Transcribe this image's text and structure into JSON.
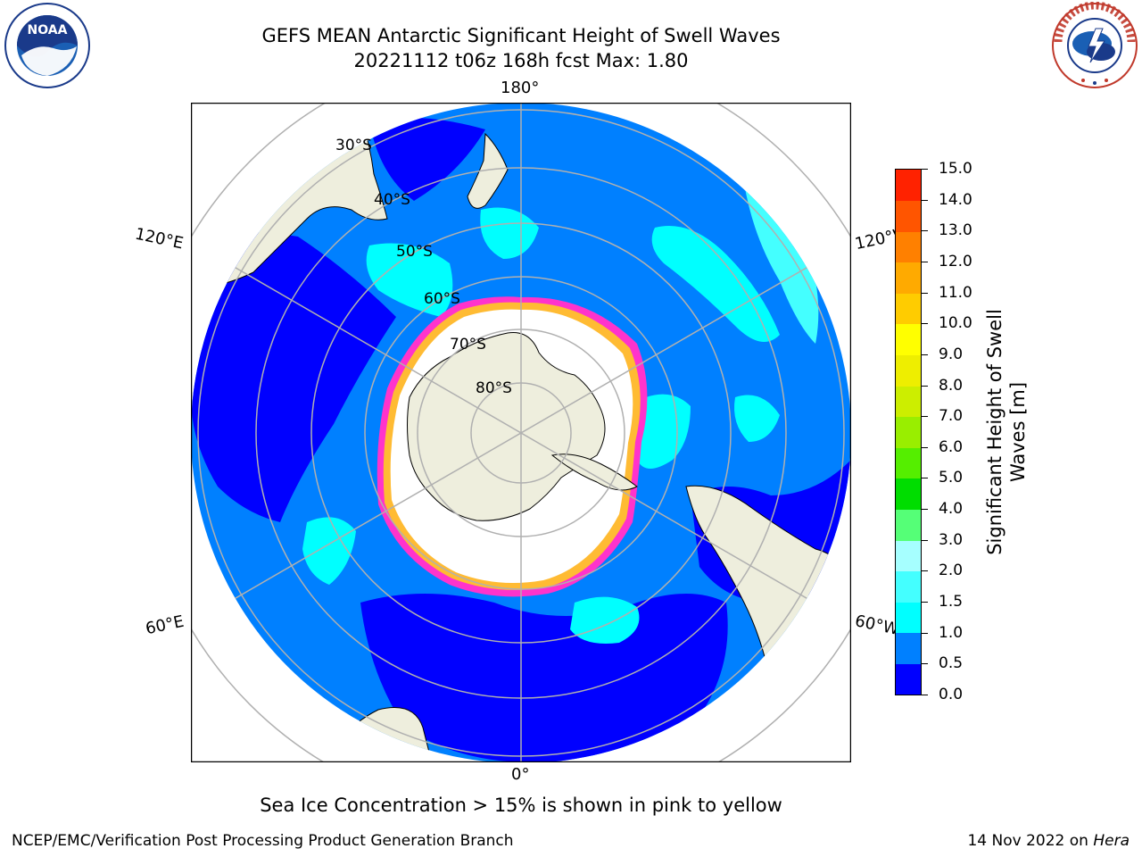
{
  "header": {
    "title_line1": "GEFS MEAN Antarctic Significant Height of Swell Waves",
    "title_line2": "20221112 t06z 168h fcst   Max: 1.80"
  },
  "logos": {
    "left": {
      "name": "noaa-logo",
      "text": "NOAA"
    },
    "right": {
      "name": "national-weather-service-logo",
      "text": "NATIONAL WEATHER SERVICE"
    }
  },
  "map": {
    "projection": "south-polar-stereographic",
    "longitude_labels": [
      "180°",
      "120°E",
      "120°W",
      "60°E",
      "60°W",
      "0°"
    ],
    "latitude_labels": [
      "30°S",
      "40°S",
      "50°S",
      "60°S",
      "70°S",
      "80°S"
    ],
    "colors": {
      "ocean_low": "#0000ff",
      "ocean_mid": "#0080ff",
      "ocean_high": "#00ffff",
      "ocean_higher": "#80ffff",
      "land": "#eeeedd",
      "sea_ice": "#ffffff",
      "ice_edge_pink": "#ff33cc",
      "ice_edge_yellow": "#ffbb33",
      "graticule": "#b0b0b0"
    }
  },
  "colorbar": {
    "title_line1": "Significant Height of Swell",
    "title_line2": "Waves [m]",
    "tick_labels": [
      "0.0",
      "0.5",
      "1.0",
      "1.5",
      "2.0",
      "3.0",
      "4.0",
      "5.0",
      "6.0",
      "7.0",
      "8.0",
      "9.0",
      "10.0",
      "11.0",
      "12.0",
      "13.0",
      "14.0",
      "15.0"
    ],
    "segment_colors": [
      "#0000ff",
      "#0080ff",
      "#00ffff",
      "#44ffff",
      "#a6ffff",
      "#55ff77",
      "#00dd00",
      "#55ee00",
      "#99ee00",
      "#ccee00",
      "#eeee00",
      "#ffff00",
      "#ffcc00",
      "#ffaa00",
      "#ff8000",
      "#ff5500",
      "#ff2200"
    ]
  },
  "notes": {
    "ice_note": "Sea Ice Concentration > 15% is shown in pink to yellow"
  },
  "footer": {
    "left": "NCEP/EMC/Verification Post Processing Product Generation Branch",
    "right_date": "14 Nov 2022 on ",
    "right_host": "Hera"
  }
}
